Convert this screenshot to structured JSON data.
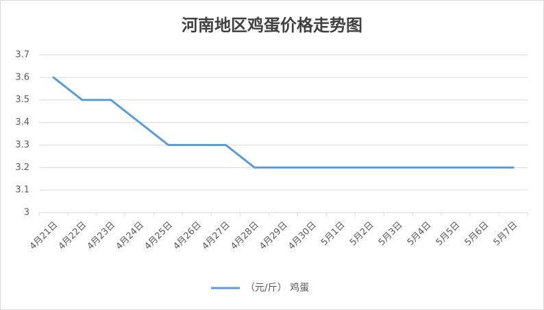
{
  "chart_data": {
    "type": "line",
    "title": "河南地区鸡蛋价格走势图",
    "categories": [
      "4月21日",
      "4月22日",
      "4月23日",
      "4月24日",
      "4月25日",
      "4月26日",
      "4月27日",
      "4月28日",
      "4月29日",
      "4月30日",
      "5月1日",
      "5月2日",
      "5月3日",
      "5月4日",
      "5月5日",
      "5月6日",
      "5月7日"
    ],
    "series": [
      {
        "name": "（元/斤） 鸡蛋",
        "color": "#5b9bd5",
        "values": [
          3.6,
          3.5,
          3.5,
          3.4,
          3.3,
          3.3,
          3.3,
          3.2,
          3.2,
          3.2,
          3.2,
          3.2,
          3.2,
          3.2,
          3.2,
          3.2,
          3.2
        ]
      }
    ],
    "ylim": [
      3,
      3.7
    ],
    "yticks": [
      3,
      3.1,
      3.2,
      3.3,
      3.4,
      3.5,
      3.6,
      3.7
    ],
    "grid": true,
    "legend": "bottom"
  }
}
